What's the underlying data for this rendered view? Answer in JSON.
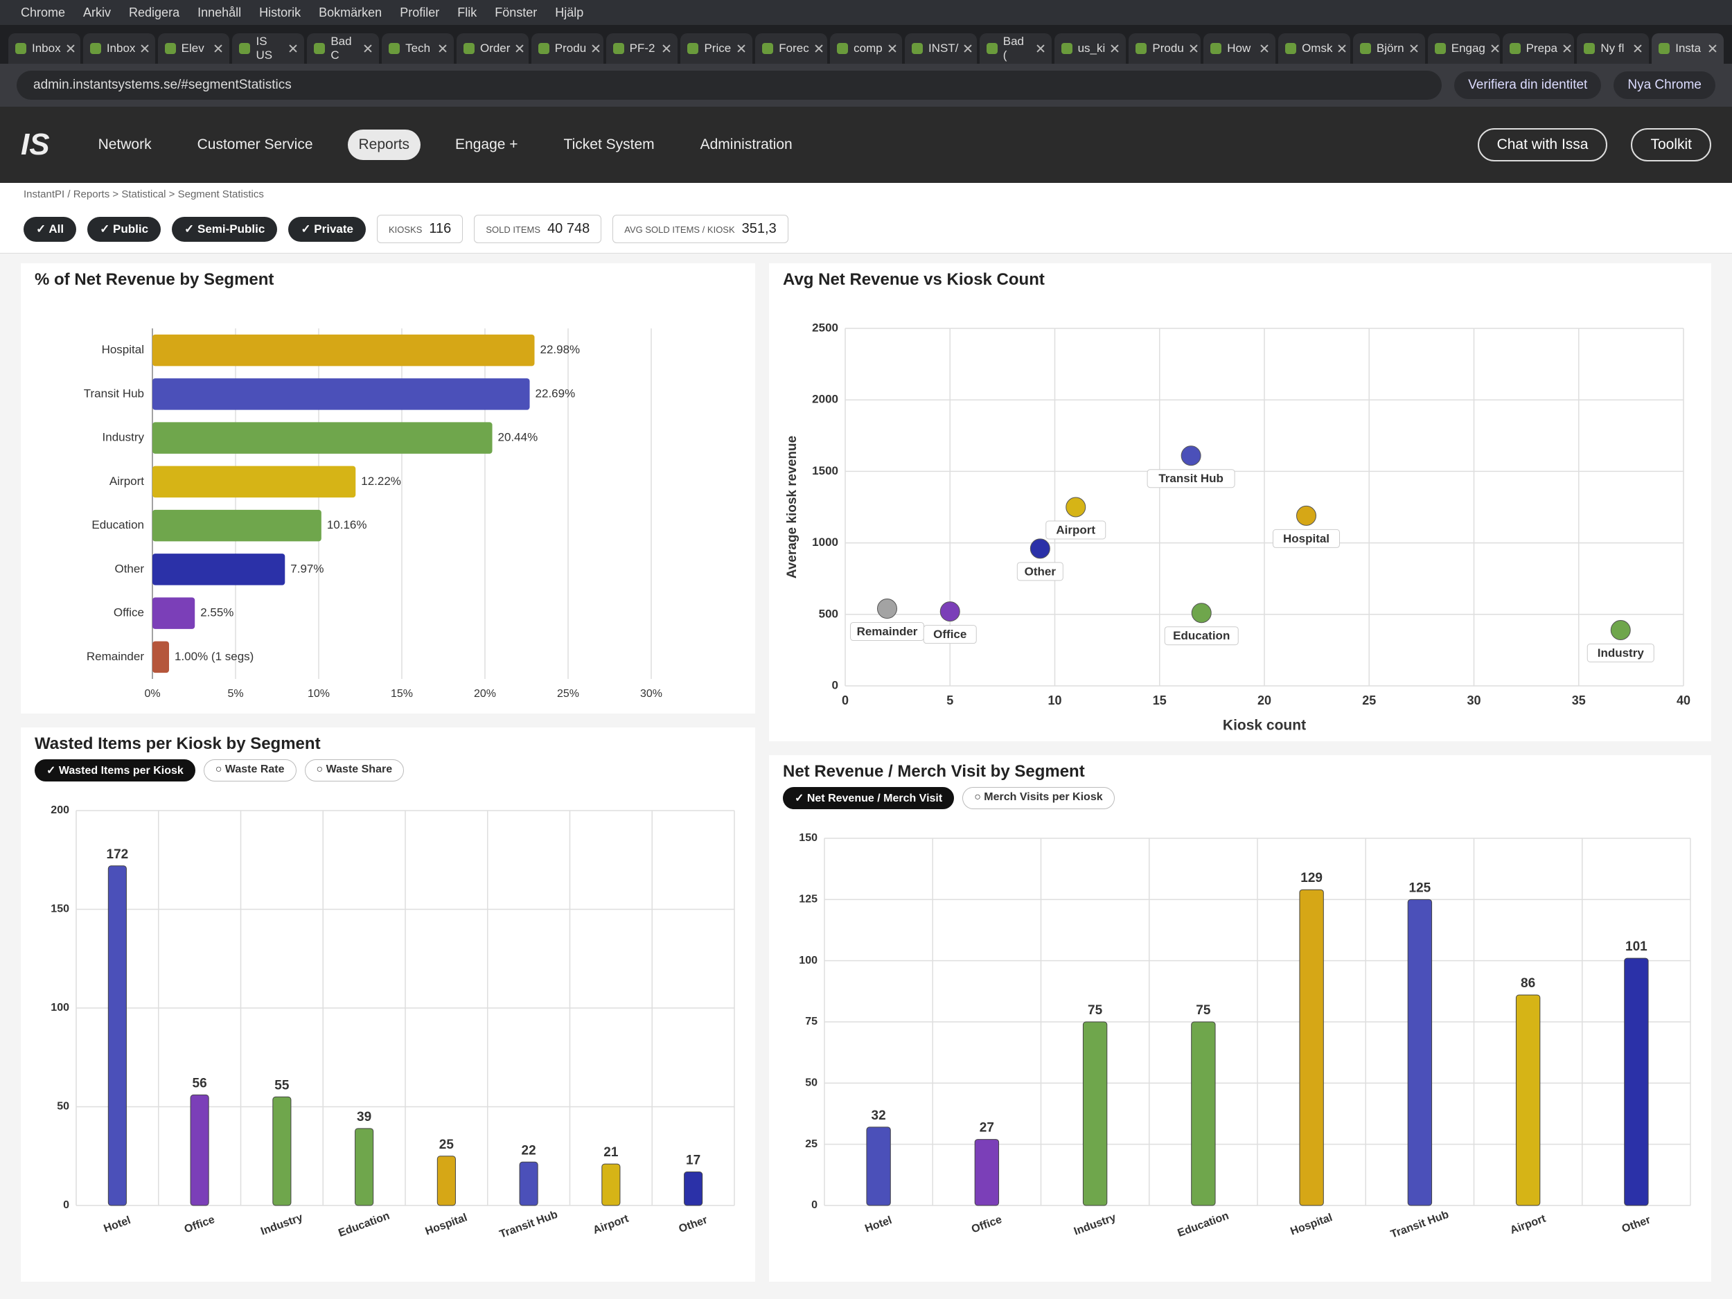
{
  "browser": {
    "menu": [
      "Chrome",
      "Arkiv",
      "Redigera",
      "Innehåll",
      "Historik",
      "Bokmärken",
      "Profiler",
      "Flik",
      "Fönster",
      "Hjälp"
    ],
    "tabs": [
      "Inbox",
      "Inbox",
      "Elev",
      "IS US",
      "Bad C",
      "Tech",
      "Order",
      "Produ",
      "PF-2",
      "Price",
      "Forec",
      "comp",
      "INST/",
      "Bad (",
      "us_ki",
      "Produ",
      "How",
      "Omsk",
      "Björn",
      "Engag",
      "Prepa",
      "Ny fl",
      "Insta"
    ],
    "url": "admin.instantsystems.se/#segmentStatistics",
    "buttons": [
      "Verifiera din identitet",
      "Nya Chrome"
    ]
  },
  "header": {
    "logo": "IS",
    "nav": [
      "Network",
      "Customer Service",
      "Reports",
      "Engage +",
      "Ticket System",
      "Administration"
    ],
    "actions": [
      "Chat with Issa",
      "Toolkit"
    ]
  },
  "breadcrumb": "InstantPI / Reports > Statistical > Segment Statistics",
  "filters": [
    "✓ All",
    "✓ Public",
    "✓ Semi-Public",
    "✓ Private"
  ],
  "stats": [
    {
      "label": "KIOSKS",
      "value": "116"
    },
    {
      "label": "SOLD ITEMS",
      "value": "40 748"
    },
    {
      "label": "AVG SOLD ITEMS / KIOSK",
      "value": "351,3"
    }
  ],
  "chart_data": [
    {
      "type": "hbar",
      "title": "% of Net Revenue by Segment",
      "categories": [
        "Hospital",
        "Transit Hub",
        "Industry",
        "Airport",
        "Education",
        "Other",
        "Office",
        "Remainder"
      ],
      "values": [
        22.98,
        22.69,
        20.44,
        12.22,
        10.16,
        7.97,
        2.55,
        1.0
      ],
      "value_labels": [
        "22.98%",
        "22.69%",
        "20.44%",
        "12.22%",
        "10.16%",
        "7.97%",
        "2.55%",
        "1.00% (1 segs)"
      ],
      "colors": [
        "#d6a716",
        "#4b50b9",
        "#6fa64c",
        "#d6b416",
        "#6fa64c",
        "#2b31a8",
        "#7b3fb8",
        "#b5563b"
      ],
      "xlim": [
        0,
        30
      ],
      "xticks": [
        {
          "value": 0,
          "label": "0%"
        },
        {
          "value": 5,
          "label": "5%"
        },
        {
          "value": 10,
          "label": "10%"
        },
        {
          "value": 15,
          "label": "15%"
        },
        {
          "value": 20,
          "label": "20%"
        },
        {
          "value": 25,
          "label": "25%"
        },
        {
          "value": 30,
          "label": "30%"
        }
      ],
      "grid": true
    },
    {
      "type": "scatter",
      "title": "Avg Net Revenue vs Kiosk Count",
      "x_label": "Kiosk count",
      "y_label": "Average kiosk revenue",
      "categories": [
        "Remainder",
        "Office",
        "Other",
        "Airport",
        "Transit Hub",
        "Hospital",
        "Education",
        "Industry"
      ],
      "x": [
        2,
        5,
        9.3,
        11,
        16.5,
        22,
        17,
        37
      ],
      "values": [
        540,
        520,
        960,
        1250,
        1610,
        1190,
        510,
        390
      ],
      "colors": [
        "#a3a3a3",
        "#7b3fb8",
        "#2b31a8",
        "#d6b416",
        "#4b50b9",
        "#d6a716",
        "#6fa64c",
        "#6fa64c"
      ],
      "xlim": [
        0,
        40
      ],
      "xticks": [
        0,
        5,
        10,
        15,
        20,
        25,
        30,
        35,
        40
      ],
      "ylim": [
        0,
        2500
      ],
      "yticks": [
        0,
        500,
        1000,
        1500,
        2000,
        2500
      ],
      "grid": true
    },
    {
      "type": "bar",
      "title": "Wasted Items per Kiosk by Segment",
      "toggles": [
        "✓ Wasted Items per Kiosk",
        "○ Waste Rate",
        "○ Waste Share"
      ],
      "categories": [
        "Hotel",
        "Office",
        "Industry",
        "Education",
        "Hospital",
        "Transit Hub",
        "Airport",
        "Other"
      ],
      "values": [
        172,
        56,
        55,
        39,
        25,
        22,
        21,
        17
      ],
      "colors": [
        "#4b50b9",
        "#7b3fb8",
        "#6fa64c",
        "#6fa64c",
        "#d6a716",
        "#4b50b9",
        "#d6b416",
        "#2b31a8"
      ],
      "ylim": [
        0,
        200
      ],
      "yticks": [
        0,
        50,
        100,
        150,
        200
      ],
      "grid": true
    },
    {
      "type": "bar",
      "title": "Net Revenue / Merch Visit by Segment",
      "toggles": [
        "✓ Net Revenue / Merch Visit",
        "○ Merch Visits per Kiosk"
      ],
      "categories": [
        "Hotel",
        "Office",
        "Industry",
        "Education",
        "Hospital",
        "Transit Hub",
        "Airport",
        "Other"
      ],
      "values": [
        32,
        27,
        75,
        75,
        129,
        125,
        86,
        101
      ],
      "colors": [
        "#4b50b9",
        "#7b3fb8",
        "#6fa64c",
        "#6fa64c",
        "#d6a716",
        "#4b50b9",
        "#d6b416",
        "#2b31a8"
      ],
      "ylim": [
        0,
        150
      ],
      "yticks": [
        0,
        25,
        50,
        75,
        100,
        125,
        150
      ],
      "grid": true
    }
  ]
}
